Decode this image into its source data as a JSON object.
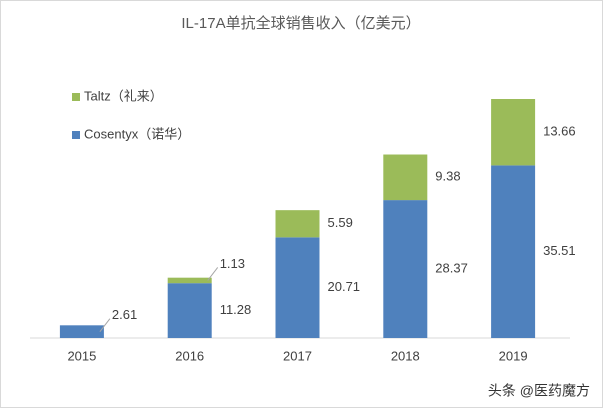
{
  "chart_data": {
    "type": "bar",
    "stacked": true,
    "title": "IL-17A单抗全球销售收入（亿美元）",
    "categories": [
      "2015",
      "2016",
      "2017",
      "2018",
      "2019"
    ],
    "series": [
      {
        "name": "Cosentyx（诺华）",
        "color": "#4f81bd",
        "values": [
          2.61,
          11.28,
          20.71,
          28.37,
          35.51
        ]
      },
      {
        "name": "Taltz（礼来）",
        "color": "#9bbb59",
        "values": [
          null,
          1.13,
          5.59,
          9.38,
          13.66
        ]
      }
    ],
    "legend": "upper-left",
    "watermark": "头条 @医药魔方"
  }
}
